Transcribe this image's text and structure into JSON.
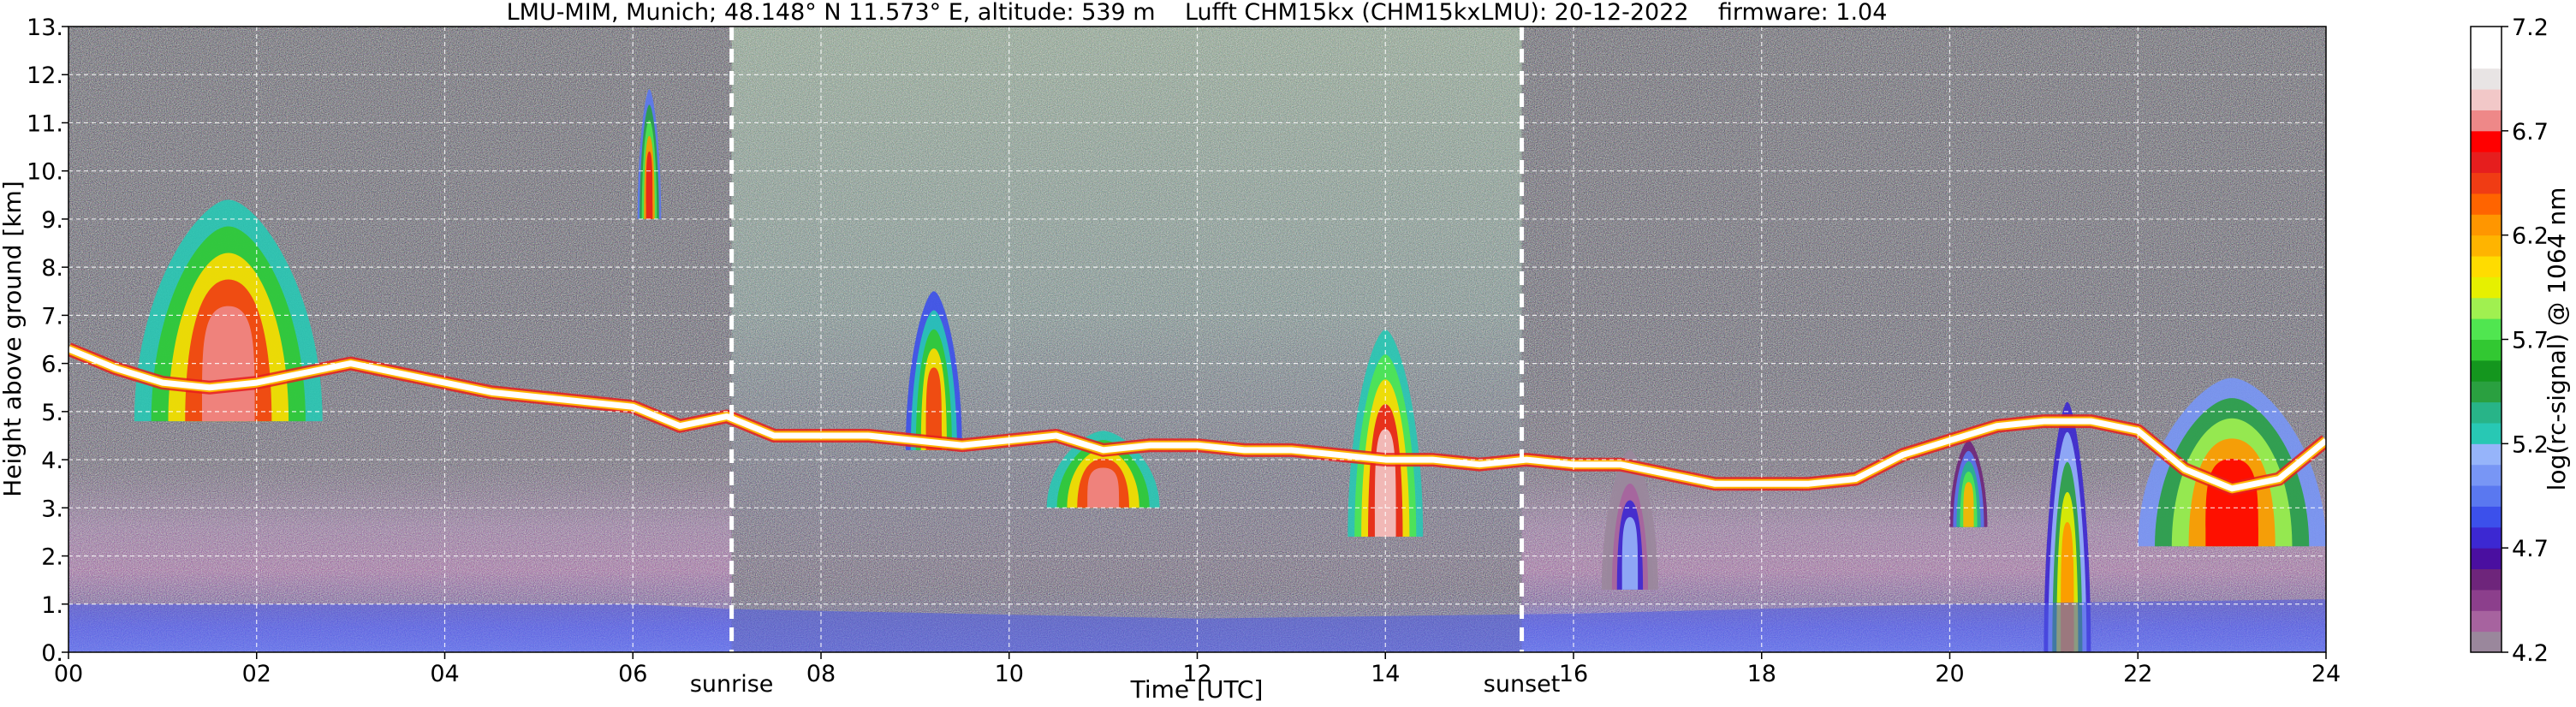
{
  "chart_data": {
    "type": "heatmap",
    "title": "LMU-MIM, Munich; 48.148° N 11.573° E, altitude: 539 m    Lufft CHM15kx (CHM15kxLMU): 20-12-2022    firmware: 1.04",
    "xlabel": "Time [UTC]",
    "ylabel": "Height above ground [km]",
    "xlim": [
      0,
      24
    ],
    "ylim": [
      0,
      13
    ],
    "x_ticks": [
      "00",
      "02",
      "04",
      "06",
      "08",
      "10",
      "12",
      "14",
      "16",
      "18",
      "20",
      "22",
      "24"
    ],
    "y_ticks": [
      "0.",
      "1.",
      "2.",
      "3.",
      "4.",
      "5.",
      "6.",
      "7.",
      "8.",
      "9.",
      "10.",
      "11.",
      "12.",
      "13."
    ],
    "grid": true,
    "markers": [
      {
        "label": "sunrise",
        "time": 7.05
      },
      {
        "label": "sunset",
        "time": 15.45
      }
    ],
    "colorbar": {
      "label": "log(rc-signal) @ 1064 nm",
      "range": [
        4.2,
        7.2
      ],
      "ticks": [
        "4.2",
        "4.7",
        "5.2",
        "5.7",
        "6.2",
        "6.7",
        "7.2"
      ],
      "colors": [
        "#9a879c",
        "#a7639f",
        "#8c3f8c",
        "#6e257b",
        "#4a0fa0",
        "#3c28d2",
        "#3c50eb",
        "#5a78f0",
        "#7896f5",
        "#96b4fa",
        "#28c8b4",
        "#28b488",
        "#2aa040",
        "#14961e",
        "#32c832",
        "#50e650",
        "#a0f050",
        "#e6f000",
        "#ffdc00",
        "#ffb400",
        "#ff9600",
        "#ff6400",
        "#f03c14",
        "#e61e1e",
        "#ff0000",
        "#ee8888",
        "#f2c8c8",
        "#e8e4e4",
        "#ffffff",
        "#ffffff"
      ]
    },
    "cloud_layer_height_km": [
      {
        "t": 0.0,
        "h": 6.3
      },
      {
        "t": 0.5,
        "h": 5.9
      },
      {
        "t": 1.0,
        "h": 5.6
      },
      {
        "t": 1.5,
        "h": 5.5
      },
      {
        "t": 2.0,
        "h": 5.6
      },
      {
        "t": 2.5,
        "h": 5.8
      },
      {
        "t": 3.0,
        "h": 6.0
      },
      {
        "t": 3.5,
        "h": 5.8
      },
      {
        "t": 4.0,
        "h": 5.6
      },
      {
        "t": 4.5,
        "h": 5.4
      },
      {
        "t": 5.0,
        "h": 5.3
      },
      {
        "t": 5.5,
        "h": 5.2
      },
      {
        "t": 6.0,
        "h": 5.1
      },
      {
        "t": 6.5,
        "h": 4.7
      },
      {
        "t": 7.0,
        "h": 4.9
      },
      {
        "t": 7.5,
        "h": 4.5
      },
      {
        "t": 8.0,
        "h": 4.5
      },
      {
        "t": 8.5,
        "h": 4.5
      },
      {
        "t": 9.0,
        "h": 4.4
      },
      {
        "t": 9.5,
        "h": 4.3
      },
      {
        "t": 10.0,
        "h": 4.4
      },
      {
        "t": 10.5,
        "h": 4.5
      },
      {
        "t": 11.0,
        "h": 4.2
      },
      {
        "t": 11.5,
        "h": 4.3
      },
      {
        "t": 12.0,
        "h": 4.3
      },
      {
        "t": 12.5,
        "h": 4.2
      },
      {
        "t": 13.0,
        "h": 4.2
      },
      {
        "t": 13.5,
        "h": 4.1
      },
      {
        "t": 14.0,
        "h": 4.0
      },
      {
        "t": 14.5,
        "h": 4.0
      },
      {
        "t": 15.0,
        "h": 3.9
      },
      {
        "t": 15.5,
        "h": 4.0
      },
      {
        "t": 16.0,
        "h": 3.9
      },
      {
        "t": 16.5,
        "h": 3.9
      },
      {
        "t": 17.0,
        "h": 3.7
      },
      {
        "t": 17.5,
        "h": 3.5
      },
      {
        "t": 18.0,
        "h": 3.5
      },
      {
        "t": 18.5,
        "h": 3.5
      },
      {
        "t": 19.0,
        "h": 3.6
      },
      {
        "t": 19.5,
        "h": 4.1
      },
      {
        "t": 20.0,
        "h": 4.4
      },
      {
        "t": 20.5,
        "h": 4.7
      },
      {
        "t": 21.0,
        "h": 4.8
      },
      {
        "t": 21.5,
        "h": 4.8
      },
      {
        "t": 22.0,
        "h": 4.6
      },
      {
        "t": 22.5,
        "h": 3.8
      },
      {
        "t": 23.0,
        "h": 3.4
      },
      {
        "t": 23.5,
        "h": 3.6
      },
      {
        "t": 24.0,
        "h": 4.4
      }
    ],
    "precipitation_fall_streaks": [
      {
        "t0": 0.7,
        "t1": 2.7,
        "top_km": 9.4,
        "base_km": 4.8,
        "intensity": 6.9
      },
      {
        "t0": 6.05,
        "t1": 6.3,
        "top_km": 11.7,
        "base_km": 9.0,
        "intensity": 6.7
      },
      {
        "t0": 8.9,
        "t1": 9.5,
        "top_km": 7.5,
        "base_km": 4.2,
        "intensity": 6.6
      },
      {
        "t0": 10.4,
        "t1": 11.6,
        "top_km": 4.6,
        "base_km": 3.0,
        "intensity": 6.9
      },
      {
        "t0": 13.6,
        "t1": 14.4,
        "top_km": 6.7,
        "base_km": 2.4,
        "intensity": 7.0
      },
      {
        "t0": 16.3,
        "t1": 16.9,
        "top_km": 4.2,
        "base_km": 1.3,
        "intensity": 5.3
      },
      {
        "t0": 20.0,
        "t1": 20.4,
        "top_km": 4.4,
        "base_km": 2.6,
        "intensity": 6.3
      },
      {
        "t0": 21.0,
        "t1": 21.5,
        "top_km": 5.2,
        "base_km": 0.0,
        "intensity": 6.4
      },
      {
        "t0": 22.0,
        "t1": 24.0,
        "top_km": 5.7,
        "base_km": 2.2,
        "intensity": 6.8
      }
    ],
    "boundary_layer_top_km": [
      {
        "t": 0,
        "h": 1.0
      },
      {
        "t": 6,
        "h": 1.0
      },
      {
        "t": 7,
        "h": 0.9
      },
      {
        "t": 12,
        "h": 0.7
      },
      {
        "t": 16,
        "h": 0.8
      },
      {
        "t": 20,
        "h": 1.0
      },
      {
        "t": 24,
        "h": 1.1
      }
    ]
  }
}
